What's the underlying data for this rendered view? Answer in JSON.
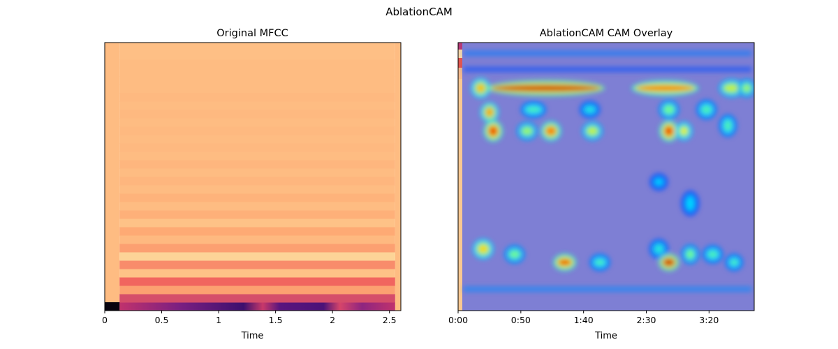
{
  "figure": {
    "suptitle": "AblationCAM"
  },
  "chart_data": [
    {
      "type": "heatmap",
      "title": "Original MFCC",
      "xlabel": "Time",
      "ylabel": "",
      "x_ticks": [
        0,
        0.5,
        1,
        1.5,
        2,
        2.5
      ],
      "x_tick_labels": [
        "0",
        "0.5",
        "1",
        "1.5",
        "2",
        "2.5"
      ],
      "xlim": [
        0,
        2.6
      ],
      "active_start": 0.13,
      "active_end": 2.55,
      "n_bands": 32,
      "y_ticks_shown": false,
      "colormap": "magma",
      "band_levels": [
        0.04,
        0.58,
        0.78,
        0.66,
        0.88,
        0.74,
        0.93,
        0.78,
        0.85,
        0.8,
        0.88,
        0.82,
        0.86,
        0.83,
        0.86,
        0.84,
        0.86,
        0.84,
        0.86,
        0.85,
        0.86,
        0.85,
        0.86,
        0.85,
        0.86,
        0.85,
        0.86,
        0.86,
        0.86,
        0.86,
        0.87,
        0.87
      ],
      "grid": false
    },
    {
      "type": "heatmap",
      "title": "AblationCAM CAM Overlay",
      "xlabel": "Time",
      "ylabel": "",
      "x_ticks": [
        0,
        50,
        100,
        150,
        200
      ],
      "x_tick_labels": [
        "0:00",
        "0:50",
        "1:40",
        "2:30",
        "3:20"
      ],
      "xlim": [
        0,
        236
      ],
      "y_ticks_shown": false,
      "colormap": "jet",
      "overlay_alpha": 0.5,
      "hotspots": [
        {
          "x": 18,
          "row": 0.17,
          "w": 7,
          "h": 0.03,
          "v": 0.75
        },
        {
          "x": 70,
          "row": 0.17,
          "w": 85,
          "h": 0.015,
          "v": 0.95
        },
        {
          "x": 165,
          "row": 0.17,
          "w": 45,
          "h": 0.015,
          "v": 0.85
        },
        {
          "x": 218,
          "row": 0.17,
          "w": 12,
          "h": 0.025,
          "v": 0.65
        },
        {
          "x": 230,
          "row": 0.17,
          "w": 6,
          "h": 0.025,
          "v": 0.6
        },
        {
          "x": 25,
          "row": 0.26,
          "w": 6,
          "h": 0.03,
          "v": 0.78
        },
        {
          "x": 60,
          "row": 0.25,
          "w": 12,
          "h": 0.02,
          "v": 0.5
        },
        {
          "x": 105,
          "row": 0.25,
          "w": 8,
          "h": 0.02,
          "v": 0.45
        },
        {
          "x": 168,
          "row": 0.25,
          "w": 8,
          "h": 0.03,
          "v": 0.55
        },
        {
          "x": 198,
          "row": 0.25,
          "w": 8,
          "h": 0.03,
          "v": 0.5
        },
        {
          "x": 28,
          "row": 0.33,
          "w": 7,
          "h": 0.035,
          "v": 0.88
        },
        {
          "x": 55,
          "row": 0.33,
          "w": 8,
          "h": 0.025,
          "v": 0.6
        },
        {
          "x": 74,
          "row": 0.33,
          "w": 8,
          "h": 0.03,
          "v": 0.82
        },
        {
          "x": 107,
          "row": 0.33,
          "w": 8,
          "h": 0.025,
          "v": 0.65
        },
        {
          "x": 168,
          "row": 0.33,
          "w": 7,
          "h": 0.035,
          "v": 0.88
        },
        {
          "x": 180,
          "row": 0.33,
          "w": 5,
          "h": 0.025,
          "v": 0.7
        },
        {
          "x": 215,
          "row": 0.31,
          "w": 6,
          "h": 0.04,
          "v": 0.5
        },
        {
          "x": 160,
          "row": 0.52,
          "w": 6,
          "h": 0.02,
          "v": 0.4
        },
        {
          "x": 185,
          "row": 0.6,
          "w": 6,
          "h": 0.05,
          "v": 0.4
        },
        {
          "x": 20,
          "row": 0.77,
          "w": 8,
          "h": 0.03,
          "v": 0.72
        },
        {
          "x": 45,
          "row": 0.79,
          "w": 8,
          "h": 0.025,
          "v": 0.55
        },
        {
          "x": 85,
          "row": 0.82,
          "w": 10,
          "h": 0.02,
          "v": 0.88
        },
        {
          "x": 113,
          "row": 0.82,
          "w": 8,
          "h": 0.02,
          "v": 0.5
        },
        {
          "x": 160,
          "row": 0.77,
          "w": 7,
          "h": 0.03,
          "v": 0.45
        },
        {
          "x": 168,
          "row": 0.82,
          "w": 8,
          "h": 0.02,
          "v": 0.95
        },
        {
          "x": 185,
          "row": 0.79,
          "w": 6,
          "h": 0.03,
          "v": 0.55
        },
        {
          "x": 203,
          "row": 0.79,
          "w": 8,
          "h": 0.025,
          "v": 0.5
        },
        {
          "x": 220,
          "row": 0.82,
          "w": 6,
          "h": 0.02,
          "v": 0.5
        }
      ],
      "grid": false
    }
  ]
}
